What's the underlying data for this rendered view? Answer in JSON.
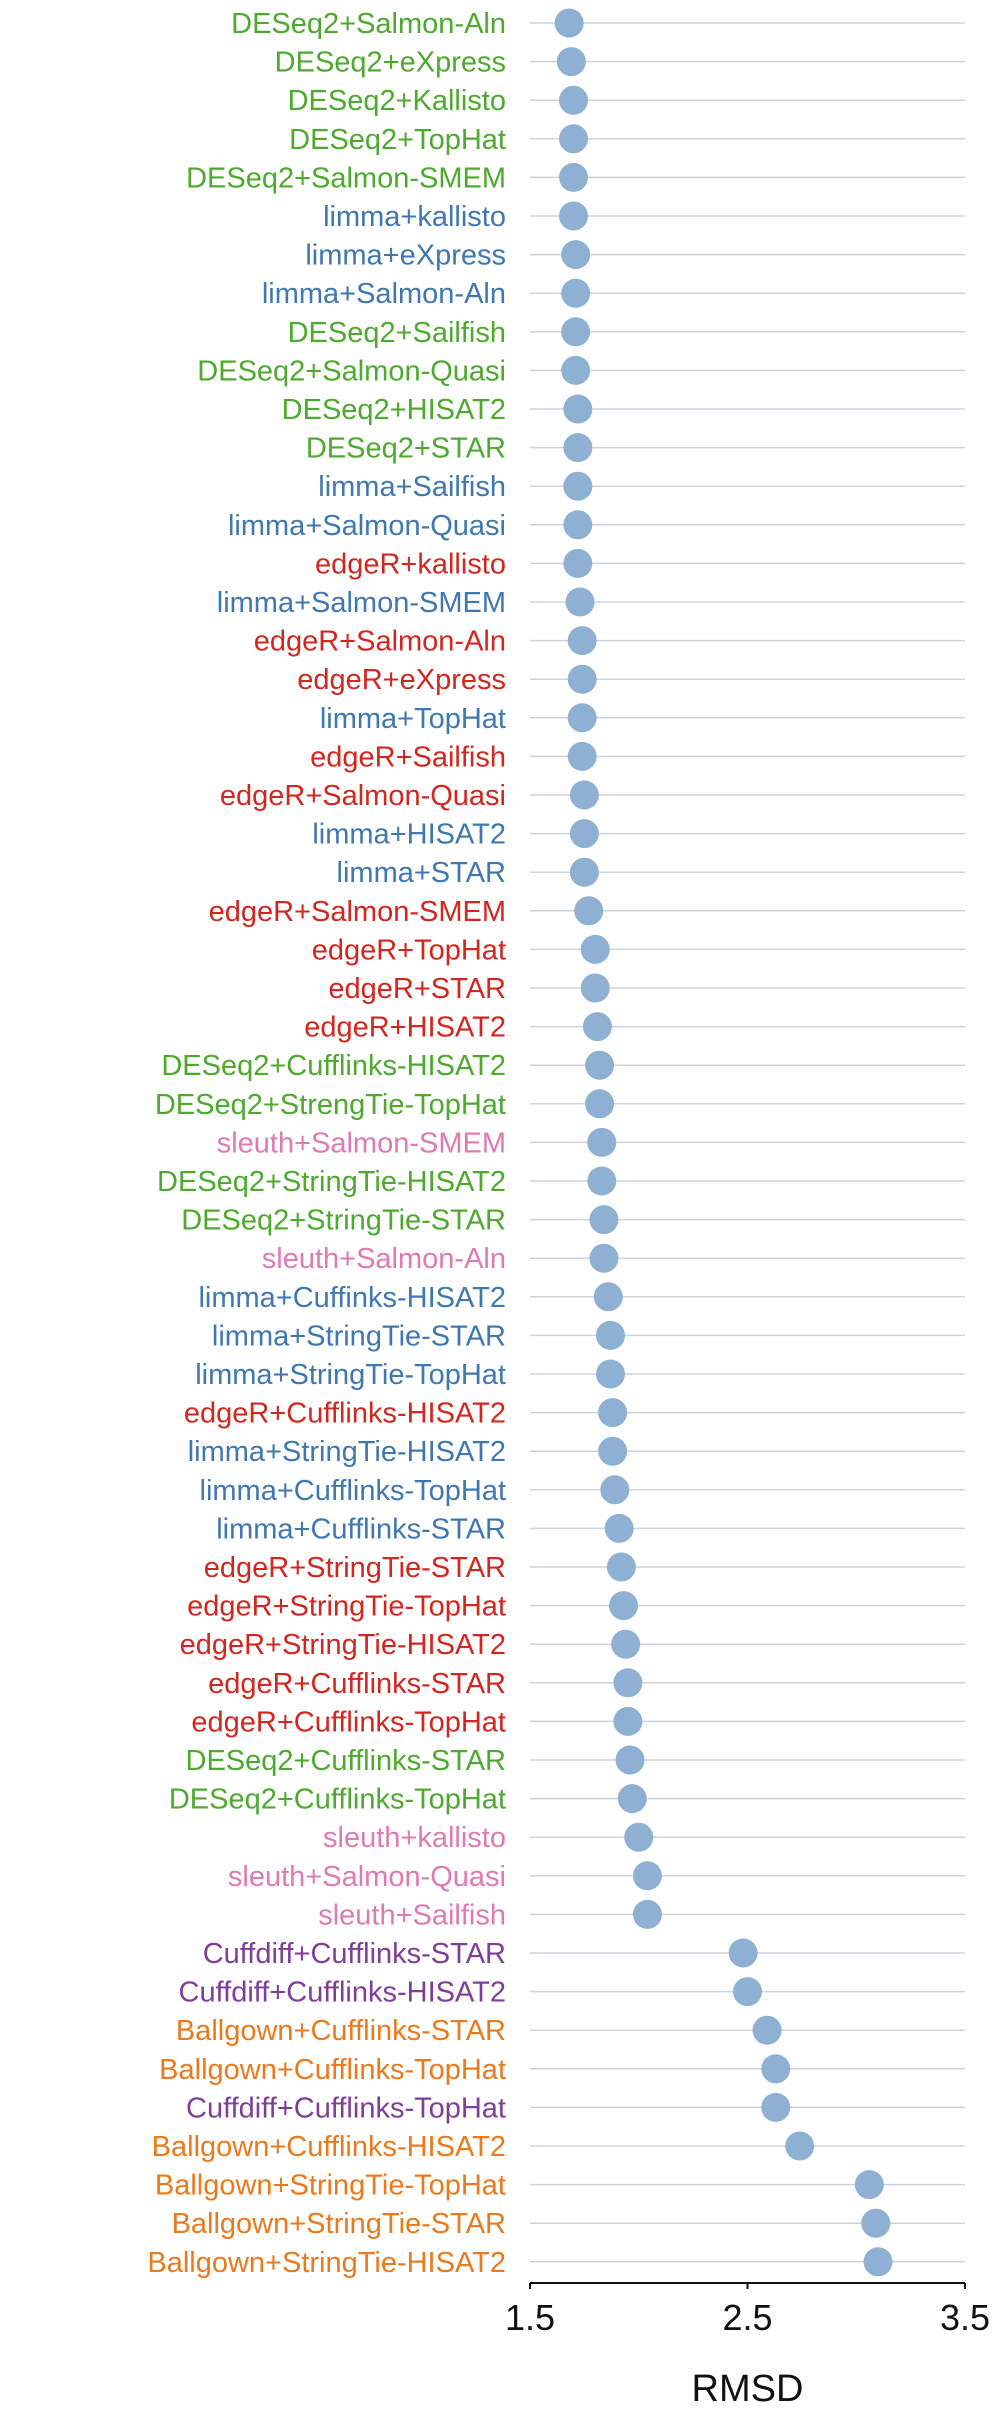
{
  "chart_data": {
    "type": "scatter",
    "orientation": "horizontal-dot",
    "title": "",
    "xlabel": "RMSD",
    "ylabel": "",
    "xlim": [
      1.5,
      3.5
    ],
    "xticks": [
      "1.5",
      "2.5",
      "3.5"
    ],
    "grid": "horizontal",
    "legend": "none",
    "point_color": "#8eb0d2",
    "group_colors": {
      "DESeq2": "#4daa2e",
      "limma": "#3f77b0",
      "edgeR": "#d2261f",
      "sleuth": "#e07ab3",
      "Cuffdiff": "#7f3d98",
      "Ballgown": "#ec7a1c"
    },
    "categories": [
      "DESeq2+Salmon-Aln",
      "DESeq2+eXpress",
      "DESeq2+Kallisto",
      "DESeq2+TopHat",
      "DESeq2+Salmon-SMEM",
      "limma+kallisto",
      "limma+eXpress",
      "limma+Salmon-Aln",
      "DESeq2+Sailfish",
      "DESeq2+Salmon-Quasi",
      "DESeq2+HISAT2",
      "DESeq2+STAR",
      "limma+Sailfish",
      "limma+Salmon-Quasi",
      "edgeR+kallisto",
      "limma+Salmon-SMEM",
      "edgeR+Salmon-Aln",
      "edgeR+eXpress",
      "limma+TopHat",
      "edgeR+Sailfish",
      "edgeR+Salmon-Quasi",
      "limma+HISAT2",
      "limma+STAR",
      "edgeR+Salmon-SMEM",
      "edgeR+TopHat",
      "edgeR+STAR",
      "edgeR+HISAT2",
      "DESeq2+Cufflinks-HISAT2",
      "DESeq2+StrengTie-TopHat",
      "sleuth+Salmon-SMEM",
      "DESeq2+StringTie-HISAT2",
      "DESeq2+StringTie-STAR",
      "sleuth+Salmon-Aln",
      "limma+Cuffinks-HISAT2",
      "limma+StringTie-STAR",
      "limma+StringTie-TopHat",
      "edgeR+Cufflinks-HISAT2",
      "limma+StringTie-HISAT2",
      "limma+Cufflinks-TopHat",
      "limma+Cufflinks-STAR",
      "edgeR+StringTie-STAR",
      "edgeR+StringTie-TopHat",
      "edgeR+StringTie-HISAT2",
      "edgeR+Cufflinks-STAR",
      "edgeR+Cufflinks-TopHat",
      "DESeq2+Cufflinks-STAR",
      "DESeq2+Cufflinks-TopHat",
      "sleuth+kallisto",
      "sleuth+Salmon-Quasi",
      "sleuth+Sailfish",
      "Cuffdiff+Cufflinks-STAR",
      "Cuffdiff+Cufflinks-HISAT2",
      "Ballgown+Cufflinks-STAR",
      "Ballgown+Cufflinks-TopHat",
      "Cuffdiff+Cufflinks-TopHat",
      "Ballgown+Cufflinks-HISAT2",
      "Ballgown+StringTie-TopHat",
      "Ballgown+StringTie-STAR",
      "Ballgown+StringTie-HISAT2"
    ],
    "values": [
      1.68,
      1.69,
      1.7,
      1.7,
      1.7,
      1.7,
      1.71,
      1.71,
      1.71,
      1.71,
      1.72,
      1.72,
      1.72,
      1.72,
      1.72,
      1.73,
      1.74,
      1.74,
      1.74,
      1.74,
      1.75,
      1.75,
      1.75,
      1.77,
      1.8,
      1.8,
      1.81,
      1.82,
      1.82,
      1.83,
      1.83,
      1.84,
      1.84,
      1.86,
      1.87,
      1.87,
      1.88,
      1.88,
      1.89,
      1.91,
      1.92,
      1.93,
      1.94,
      1.95,
      1.95,
      1.96,
      1.97,
      2.0,
      2.04,
      2.04,
      2.48,
      2.5,
      2.59,
      2.63,
      2.63,
      2.74,
      3.06,
      3.09,
      3.1
    ]
  }
}
